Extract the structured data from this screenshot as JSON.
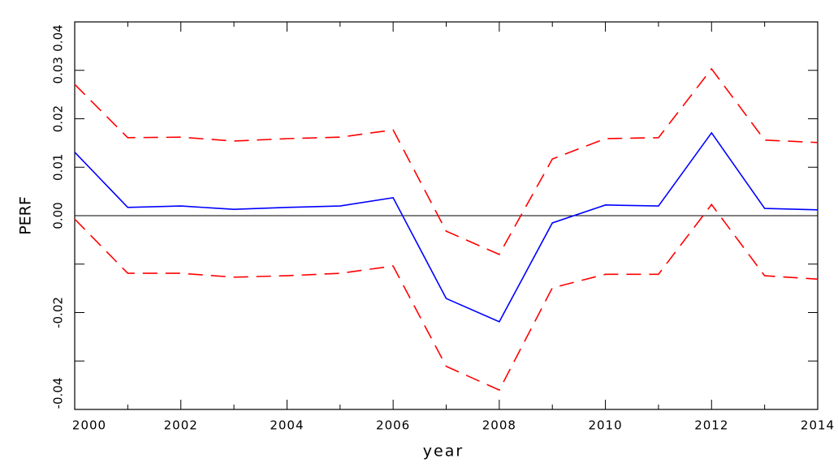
{
  "chart_data": {
    "type": "line",
    "xlabel": "year",
    "ylabel": "PERF",
    "x": [
      2000,
      2001,
      2002,
      2003,
      2004,
      2005,
      2006,
      2007,
      2008,
      2009,
      2010,
      2011,
      2012,
      2013,
      2014
    ],
    "series": [
      {
        "color": "#0000ff",
        "dash": false,
        "values": [
          0.0131,
          0.0017,
          0.002,
          0.0013,
          0.0017,
          0.002,
          0.0037,
          -0.0171,
          -0.0219,
          -0.0015,
          0.0022,
          0.002,
          0.0171,
          0.0015,
          0.0012
        ]
      },
      {
        "color": "#ff0000",
        "dash": true,
        "values": [
          0.0271,
          0.0161,
          0.0162,
          0.0154,
          0.0159,
          0.0162,
          0.0177,
          -0.0032,
          -0.008,
          0.0117,
          0.0159,
          0.0161,
          0.0303,
          0.0156,
          0.0151
        ]
      },
      {
        "color": "#ff0000",
        "dash": true,
        "values": [
          -0.0007,
          -0.0119,
          -0.0119,
          -0.0127,
          -0.0124,
          -0.0119,
          -0.0104,
          -0.0311,
          -0.036,
          -0.0149,
          -0.0121,
          -0.0121,
          0.0023,
          -0.0124,
          -0.0131
        ]
      }
    ],
    "xlim": [
      2000,
      2014
    ],
    "ylim": [
      -0.04,
      0.04
    ],
    "xticks": [
      2000,
      2002,
      2004,
      2006,
      2008,
      2010,
      2012,
      2014
    ],
    "xminor": [
      2001,
      2003,
      2005,
      2007,
      2009,
      2011,
      2013
    ],
    "yticks": [
      {
        "value": -0.04,
        "label": "-0.04"
      },
      {
        "value": -0.02,
        "label": "-0.02"
      },
      {
        "value": 0,
        "label": "0.00"
      },
      {
        "value": 0.01,
        "label": "0.01"
      },
      {
        "value": 0.02,
        "label": "0.02"
      },
      {
        "value": 0.03,
        "label": "0.03"
      },
      0.04
    ],
    "yminor": [
      -0.03,
      -0.01
    ],
    "zero_line": true
  }
}
